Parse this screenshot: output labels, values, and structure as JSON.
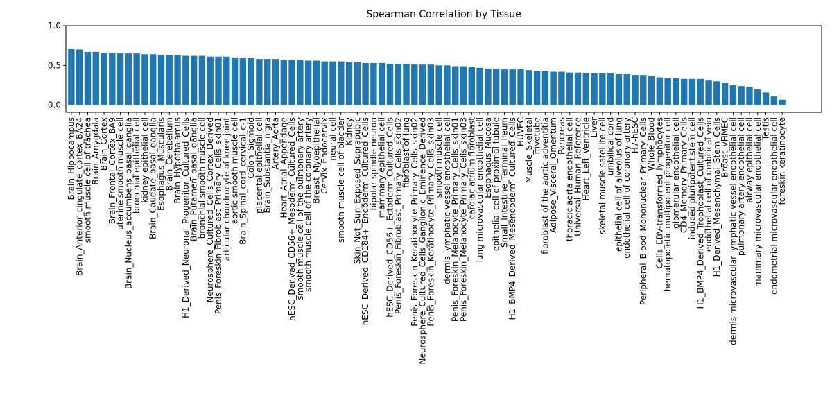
{
  "chart_data": {
    "type": "bar",
    "title": "Spearman Correlation by Tissue",
    "color": "#1f77b4",
    "categories": [
      "Brain_Hippocampus",
      "Brain_Anterior_cingulate_cortex_BA24",
      "smooth muscle cell of trachea",
      "Brain_Amygdala",
      "Brain_Cortex",
      "Brain_Frontal_Cortex_BA9",
      "uterine smooth muscle cell",
      "Brain_Nucleus_accumbens_basal_ganglia",
      "bronchial epithelial cell",
      "kidney epithelial cell",
      "Brain_Caudate_basal_ganglia",
      "Esophagus_Muscularis",
      "Brain_Cerebellum",
      "Brain_Hypothalamus",
      "H1_Derived_Neuronal_Progenitor_Cultured_Cells",
      "Brain_Putamen_basal_ganglia",
      "bronchial smooth muscle cell",
      "Neurosphere_Cultured_Cells_Cortex_Derived",
      "Penis_Foreskin_Fibroblast_Primary_Cells_skin01",
      "articular chondrocyte of knee joint",
      "aortic smooth muscle cell",
      "Brain_Spinal_cord_cervical_c-1",
      "Colon_Sigmoid",
      "placental epithelial cell",
      "Brain_Substantia_nigra",
      "Artery_Aorta",
      "Heart_Atrial_Appendage",
      "hESC_Derived_CD56+_Mesoderm_Cultured_Cells",
      "smooth muscle cell of the pulmonary artery",
      "smooth muscle cell of the coronary artery",
      "Breast_Myoepithelial",
      "Cervix_Endocervix",
      "neural cell",
      "smooth muscle cell of bladder",
      "Kidney",
      "Skin_Not_Sun_Exposed_Suprapubic",
      "hESC_Derived_CD184+_Endoderm_Cultured_Cells",
      "bipolar spindle neuron",
      "mammary epithelial cell",
      "hESC_Derived_CD56+_Ectoderm_Cultured_Cells",
      "Penis_Foreskin_Fibroblast_Primary_Cells_skin02",
      "fibroblast of lung",
      "Penis_Foreskin_Keratinocyte_Primary_Cells_skin02",
      "Neurosphere_Cultured_Cells_Ganglionic_Eminence_Derived",
      "Penis_Foreskin_Keratinocyte_Primary_Cells_skin03",
      "smooth muscle cell",
      "dermis lymphatic vessel endothelial cell",
      "Penis_Foreskin_Melanocyte_Primary_Cells_skin01",
      "Penis_Foreskin_Melanocyte_Primary_Cells_skin03",
      "cardiac atrium fibroblast",
      "lung microvascular endothelial cell",
      "Esophagus_Mucosa",
      "epithelial cell of proximal tubule",
      "Small_Intestine_Terminal_Ileum",
      "H1_BMP4_Derived_Mesendoderm_Cultured_Cells",
      "HUVEC",
      "Muscle_Skeletal",
      "myotube",
      "fibroblast of the aortic adventitia",
      "Adipose_Visceral_Omentum",
      "Pancreas",
      "thoracic aorta endothelial cell",
      "Universal_Human_Reference",
      "Heart_Left_Ventricle",
      "Liver",
      "skeletal muscle satellite cell",
      "umbilical cord",
      "epithelial cell of alveolus of lung",
      "endothelial cell of coronary artery",
      "H7-hESC",
      "Peripheral_Blood_Mononuclear_Primary_Cells",
      "Whole_Blood",
      "Cells_EBV-transformed_lymphocytes",
      "hematopoietic multipotent progenitor cell",
      "glomerular endothelial cell",
      "CD4_Memory_Primary_Cells",
      "induced pluripotent stem cell",
      "H1_BMP4_Derived_Trophoblast_Cultured_Cells",
      "endothelial cell of umbilical vein",
      "H1_Derived_Mesenchymal_Stem_Cells",
      "Breast_vHMEC",
      "dermis microvascular lymphatic vessel endothelial cell",
      "pulmonary artery endothelial cell",
      "airway epithelial cell",
      "mammary microvascular endothelial cell",
      "Testis",
      "endometrial microvascular endothelial cell",
      "foreskin keratinocyte"
    ],
    "values": [
      0.71,
      0.7,
      0.67,
      0.67,
      0.66,
      0.66,
      0.65,
      0.65,
      0.65,
      0.64,
      0.64,
      0.63,
      0.63,
      0.63,
      0.62,
      0.62,
      0.62,
      0.61,
      0.61,
      0.61,
      0.6,
      0.59,
      0.59,
      0.58,
      0.58,
      0.58,
      0.57,
      0.57,
      0.57,
      0.56,
      0.56,
      0.55,
      0.55,
      0.55,
      0.54,
      0.54,
      0.53,
      0.53,
      0.53,
      0.52,
      0.52,
      0.52,
      0.51,
      0.51,
      0.51,
      0.5,
      0.5,
      0.49,
      0.49,
      0.48,
      0.47,
      0.46,
      0.46,
      0.45,
      0.45,
      0.45,
      0.44,
      0.43,
      0.43,
      0.42,
      0.42,
      0.41,
      0.41,
      0.4,
      0.4,
      0.4,
      0.4,
      0.39,
      0.39,
      0.38,
      0.38,
      0.37,
      0.35,
      0.34,
      0.34,
      0.33,
      0.33,
      0.33,
      0.31,
      0.3,
      0.28,
      0.25,
      0.24,
      0.23,
      0.2,
      0.16,
      0.11,
      0.07
    ],
    "ylim": [
      -0.09,
      1.0
    ],
    "yticks": [
      {
        "value": 0,
        "label": "0.0"
      },
      0.5,
      {
        "value": 1,
        "label": "1.0"
      }
    ]
  }
}
